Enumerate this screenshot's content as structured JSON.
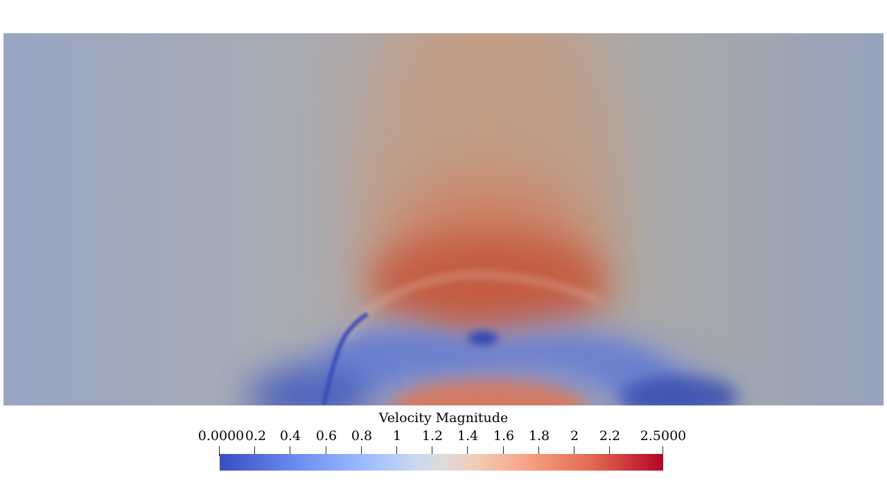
{
  "legend": {
    "title": "Velocity Magnitude",
    "ticks": [
      {
        "label": "0.0000",
        "value": 0.0
      },
      {
        "label": "0.2",
        "value": 0.2
      },
      {
        "label": "0.4",
        "value": 0.4
      },
      {
        "label": "0.6",
        "value": 0.6
      },
      {
        "label": "0.8",
        "value": 0.8
      },
      {
        "label": "1",
        "value": 1.0
      },
      {
        "label": "1.2",
        "value": 1.2
      },
      {
        "label": "1.4",
        "value": 1.4
      },
      {
        "label": "1.6",
        "value": 1.6
      },
      {
        "label": "1.8",
        "value": 1.8
      },
      {
        "label": "2",
        "value": 2.0
      },
      {
        "label": "2.2",
        "value": 2.2
      },
      {
        "label": "2.5000",
        "value": 2.5
      }
    ],
    "range": [
      0.0,
      2.5
    ],
    "colormap_stops": [
      "#3b4cc0",
      "#6788ee",
      "#9abbff",
      "#dddcdc",
      "#f7a889",
      "#e26952",
      "#b40426"
    ]
  }
}
